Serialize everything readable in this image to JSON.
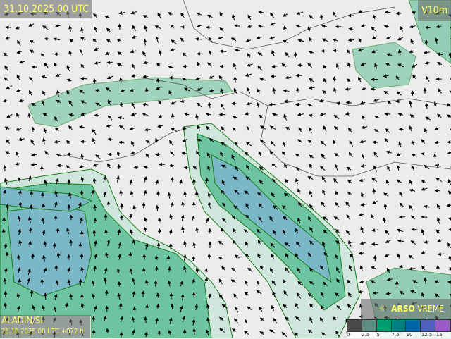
{
  "header": {
    "valid_time": "31.10.2025 00 UTC",
    "parameter": "V10m"
  },
  "model": {
    "name": "ALADIN/SI",
    "run": "28.10.2025 00 UTC +072 h"
  },
  "brand": {
    "logo_icon": "sun-cloud-icon",
    "name_bold": "ARSO",
    "name_light": " VREME"
  },
  "legend": {
    "unit_hidden": "",
    "ticks": [
      "0",
      "2.5",
      "5",
      "7.5",
      "10",
      "12.5",
      "15"
    ],
    "colors": [
      "#4a4a4a",
      "#5f8c80",
      "#009b6e",
      "#008080",
      "#0066aa",
      "#5060c0",
      "#9b59c8"
    ]
  },
  "colors": {
    "sea_light": "#cfe6dc",
    "wind_5": "#6cc4a0",
    "wind_75": "#2fa585",
    "wind_10": "#7ab8c8",
    "contour": "#1a7a1a"
  }
}
